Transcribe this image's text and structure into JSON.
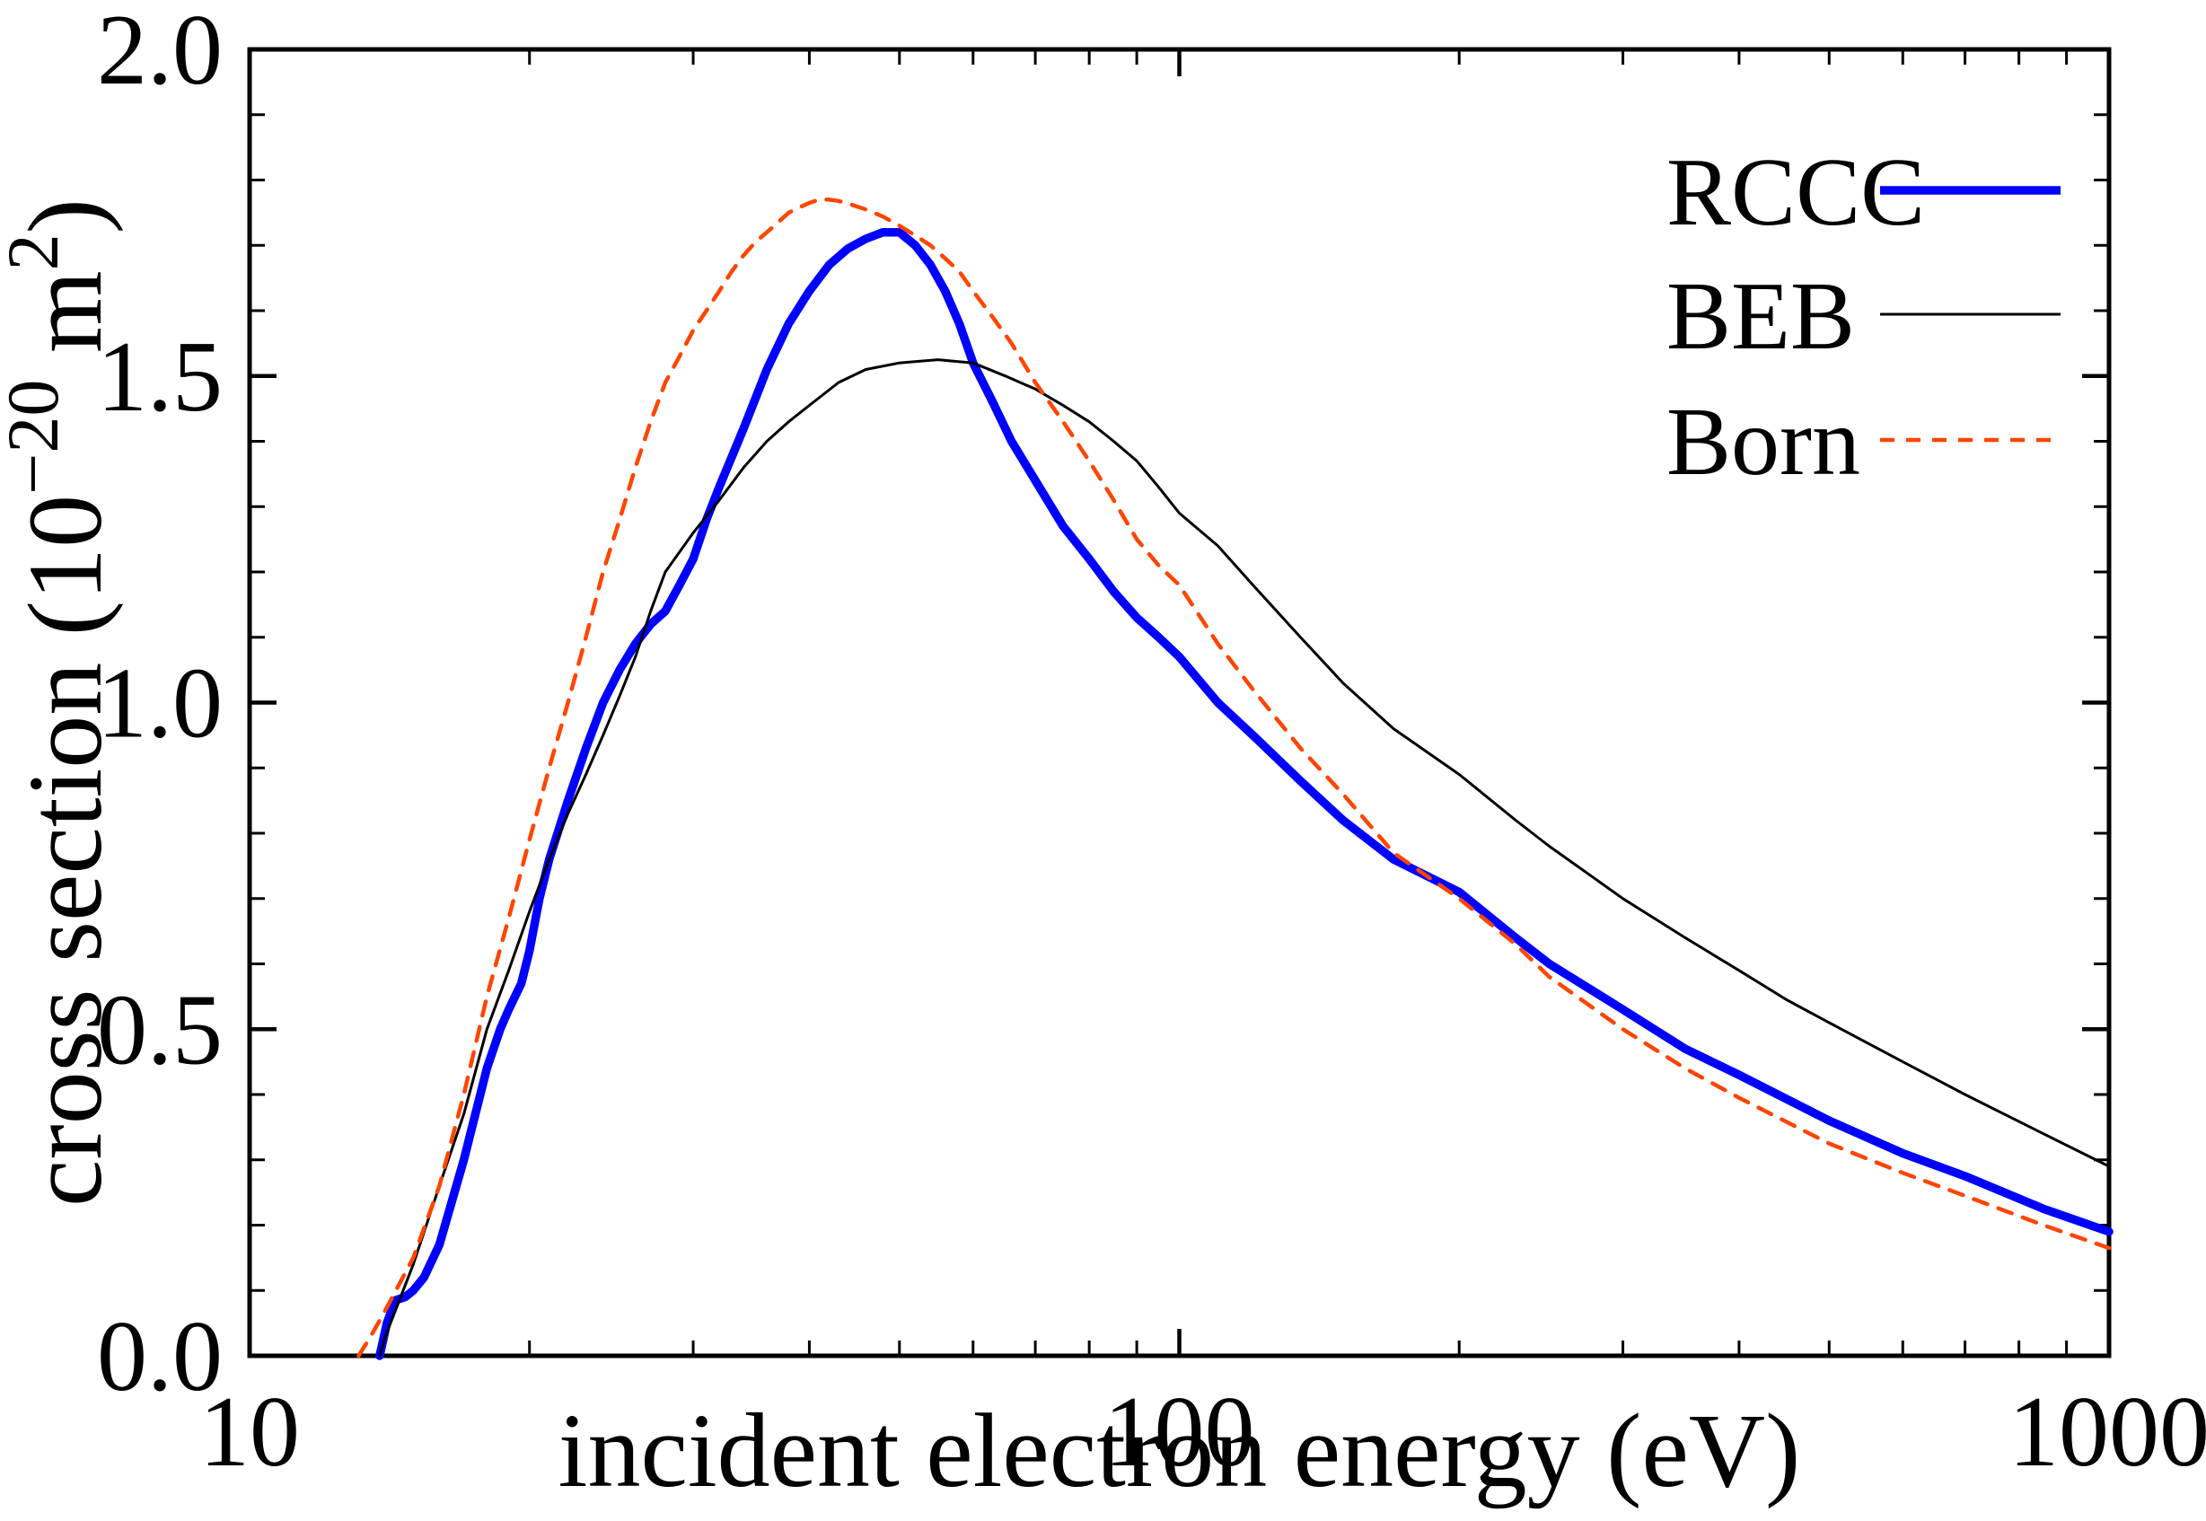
{
  "figure": {
    "background": "#ffffff",
    "frame_color": "#000000"
  },
  "chart_data": {
    "type": "line",
    "title": "",
    "xlabel": "incident electron energy (eV)",
    "ylabel": "cross section (10⁻²⁰ m²)",
    "ylabel_parts": [
      {
        "t": "cross section (10"
      },
      {
        "t": "−20",
        "sup": true
      },
      {
        "t": " m"
      },
      {
        "t": "2",
        "sup": true
      },
      {
        "t": ")"
      }
    ],
    "x_scale": "log",
    "xlim": [
      10,
      1000
    ],
    "ylim": [
      0.0,
      2.0
    ],
    "x_major_ticks": [
      10,
      100,
      1000
    ],
    "x_tick_labels": [
      "10",
      "100",
      "1000"
    ],
    "y_major_ticks": [
      0.0,
      0.5,
      1.0,
      1.5,
      2.0
    ],
    "y_tick_labels": [
      "0.0",
      "0.5",
      "1.0",
      "1.5",
      "2.0"
    ],
    "y_minor_step": 0.1,
    "grid": false,
    "legend_position": "top-right",
    "legend": [
      {
        "label": "RCCC",
        "color": "#0000ff",
        "style": "solid",
        "width": 9.5
      },
      {
        "label": "BEB",
        "color": "#000000",
        "style": "solid",
        "width": 3.0
      },
      {
        "label": "Born",
        "color": "#ff4500",
        "style": "dashed",
        "width": 4.5
      }
    ],
    "series": [
      {
        "name": "RCCC",
        "color": "#0000ff",
        "style": "solid",
        "width": 9.5,
        "points": [
          [
            13.8,
            0.0
          ],
          [
            13.9,
            0.02
          ],
          [
            14.05,
            0.05
          ],
          [
            14.35,
            0.085
          ],
          [
            14.7,
            0.09
          ],
          [
            15.0,
            0.1
          ],
          [
            15.4,
            0.12
          ],
          [
            16,
            0.17
          ],
          [
            17,
            0.3
          ],
          [
            18,
            0.44
          ],
          [
            18.6,
            0.5
          ],
          [
            19,
            0.53
          ],
          [
            19.6,
            0.57
          ],
          [
            20,
            0.62
          ],
          [
            20.5,
            0.7
          ],
          [
            21,
            0.76
          ],
          [
            22,
            0.85
          ],
          [
            23,
            0.93
          ],
          [
            24,
            1.0
          ],
          [
            25,
            1.05
          ],
          [
            26,
            1.09
          ],
          [
            27,
            1.12
          ],
          [
            28,
            1.14
          ],
          [
            29,
            1.18
          ],
          [
            30,
            1.22
          ],
          [
            31,
            1.28
          ],
          [
            32,
            1.33
          ],
          [
            34,
            1.42
          ],
          [
            36,
            1.51
          ],
          [
            38,
            1.58
          ],
          [
            40,
            1.63
          ],
          [
            42,
            1.67
          ],
          [
            44,
            1.695
          ],
          [
            46,
            1.71
          ],
          [
            48,
            1.72
          ],
          [
            50,
            1.72
          ],
          [
            52,
            1.7
          ],
          [
            54,
            1.67
          ],
          [
            56,
            1.63
          ],
          [
            58,
            1.58
          ],
          [
            60,
            1.52
          ],
          [
            63,
            1.46
          ],
          [
            66,
            1.4
          ],
          [
            70,
            1.34
          ],
          [
            75,
            1.27
          ],
          [
            80,
            1.22
          ],
          [
            85,
            1.17
          ],
          [
            90,
            1.13
          ],
          [
            95,
            1.1
          ],
          [
            100,
            1.07
          ],
          [
            110,
            1.0
          ],
          [
            120,
            0.95
          ],
          [
            135,
            0.88
          ],
          [
            150,
            0.82
          ],
          [
            170,
            0.76
          ],
          [
            200,
            0.71
          ],
          [
            230,
            0.64
          ],
          [
            250,
            0.6
          ],
          [
            300,
            0.53
          ],
          [
            350,
            0.47
          ],
          [
            400,
            0.43
          ],
          [
            500,
            0.36
          ],
          [
            600,
            0.31
          ],
          [
            700,
            0.275
          ],
          [
            850,
            0.225
          ],
          [
            1000,
            0.19
          ]
        ]
      },
      {
        "name": "BEB",
        "color": "#000000",
        "style": "solid",
        "width": 3.0,
        "points": [
          [
            13.8,
            0.0
          ],
          [
            14,
            0.03
          ],
          [
            15,
            0.14
          ],
          [
            16,
            0.26
          ],
          [
            17,
            0.37
          ],
          [
            18,
            0.5
          ],
          [
            19,
            0.59
          ],
          [
            20,
            0.68
          ],
          [
            21,
            0.76
          ],
          [
            22,
            0.83
          ],
          [
            23,
            0.89
          ],
          [
            24,
            0.95
          ],
          [
            25,
            1.01
          ],
          [
            26,
            1.07
          ],
          [
            27,
            1.14
          ],
          [
            28,
            1.2
          ],
          [
            30,
            1.26
          ],
          [
            32,
            1.31
          ],
          [
            34,
            1.36
          ],
          [
            36,
            1.4
          ],
          [
            38,
            1.43
          ],
          [
            40,
            1.455
          ],
          [
            43,
            1.49
          ],
          [
            46,
            1.51
          ],
          [
            50,
            1.52
          ],
          [
            55,
            1.525
          ],
          [
            60,
            1.52
          ],
          [
            65,
            1.5
          ],
          [
            70,
            1.48
          ],
          [
            75,
            1.455
          ],
          [
            80,
            1.43
          ],
          [
            85,
            1.4
          ],
          [
            90,
            1.37
          ],
          [
            95,
            1.33
          ],
          [
            100,
            1.29
          ],
          [
            110,
            1.24
          ],
          [
            120,
            1.18
          ],
          [
            135,
            1.1
          ],
          [
            150,
            1.03
          ],
          [
            170,
            0.96
          ],
          [
            200,
            0.89
          ],
          [
            230,
            0.82
          ],
          [
            250,
            0.78
          ],
          [
            300,
            0.7
          ],
          [
            350,
            0.64
          ],
          [
            400,
            0.59
          ],
          [
            450,
            0.545
          ],
          [
            500,
            0.51
          ],
          [
            600,
            0.45
          ],
          [
            700,
            0.4
          ],
          [
            850,
            0.34
          ],
          [
            1000,
            0.29
          ]
        ]
      },
      {
        "name": "Born",
        "color": "#ff4500",
        "style": "dashed",
        "width": 4.5,
        "points": [
          [
            13.1,
            0.0
          ],
          [
            13.5,
            0.03
          ],
          [
            14,
            0.07
          ],
          [
            15,
            0.15
          ],
          [
            16,
            0.26
          ],
          [
            17,
            0.4
          ],
          [
            18,
            0.55
          ],
          [
            19,
            0.67
          ],
          [
            20,
            0.79
          ],
          [
            21,
            0.9
          ],
          [
            22,
            1.0
          ],
          [
            23,
            1.1
          ],
          [
            24,
            1.2
          ],
          [
            25,
            1.28
          ],
          [
            26,
            1.36
          ],
          [
            27,
            1.43
          ],
          [
            28,
            1.49
          ],
          [
            29,
            1.53
          ],
          [
            30,
            1.57
          ],
          [
            31,
            1.6
          ],
          [
            32,
            1.63
          ],
          [
            33,
            1.66
          ],
          [
            34,
            1.685
          ],
          [
            35,
            1.705
          ],
          [
            36,
            1.72
          ],
          [
            37,
            1.735
          ],
          [
            38,
            1.75
          ],
          [
            39,
            1.758
          ],
          [
            40,
            1.765
          ],
          [
            41,
            1.77
          ],
          [
            42,
            1.77
          ],
          [
            43,
            1.768
          ],
          [
            44,
            1.764
          ],
          [
            46,
            1.755
          ],
          [
            48,
            1.744
          ],
          [
            50,
            1.73
          ],
          [
            52,
            1.715
          ],
          [
            54,
            1.7
          ],
          [
            56,
            1.68
          ],
          [
            58,
            1.66
          ],
          [
            60,
            1.63
          ],
          [
            63,
            1.59
          ],
          [
            66,
            1.55
          ],
          [
            70,
            1.49
          ],
          [
            75,
            1.43
          ],
          [
            80,
            1.37
          ],
          [
            85,
            1.31
          ],
          [
            90,
            1.25
          ],
          [
            95,
            1.21
          ],
          [
            100,
            1.18
          ],
          [
            110,
            1.09
          ],
          [
            120,
            1.02
          ],
          [
            135,
            0.93
          ],
          [
            150,
            0.86
          ],
          [
            170,
            0.77
          ],
          [
            200,
            0.7
          ],
          [
            230,
            0.63
          ],
          [
            250,
            0.58
          ],
          [
            300,
            0.5
          ],
          [
            350,
            0.44
          ],
          [
            400,
            0.395
          ],
          [
            500,
            0.325
          ],
          [
            600,
            0.28
          ],
          [
            700,
            0.245
          ],
          [
            850,
            0.2
          ],
          [
            1000,
            0.165
          ]
        ]
      }
    ]
  }
}
